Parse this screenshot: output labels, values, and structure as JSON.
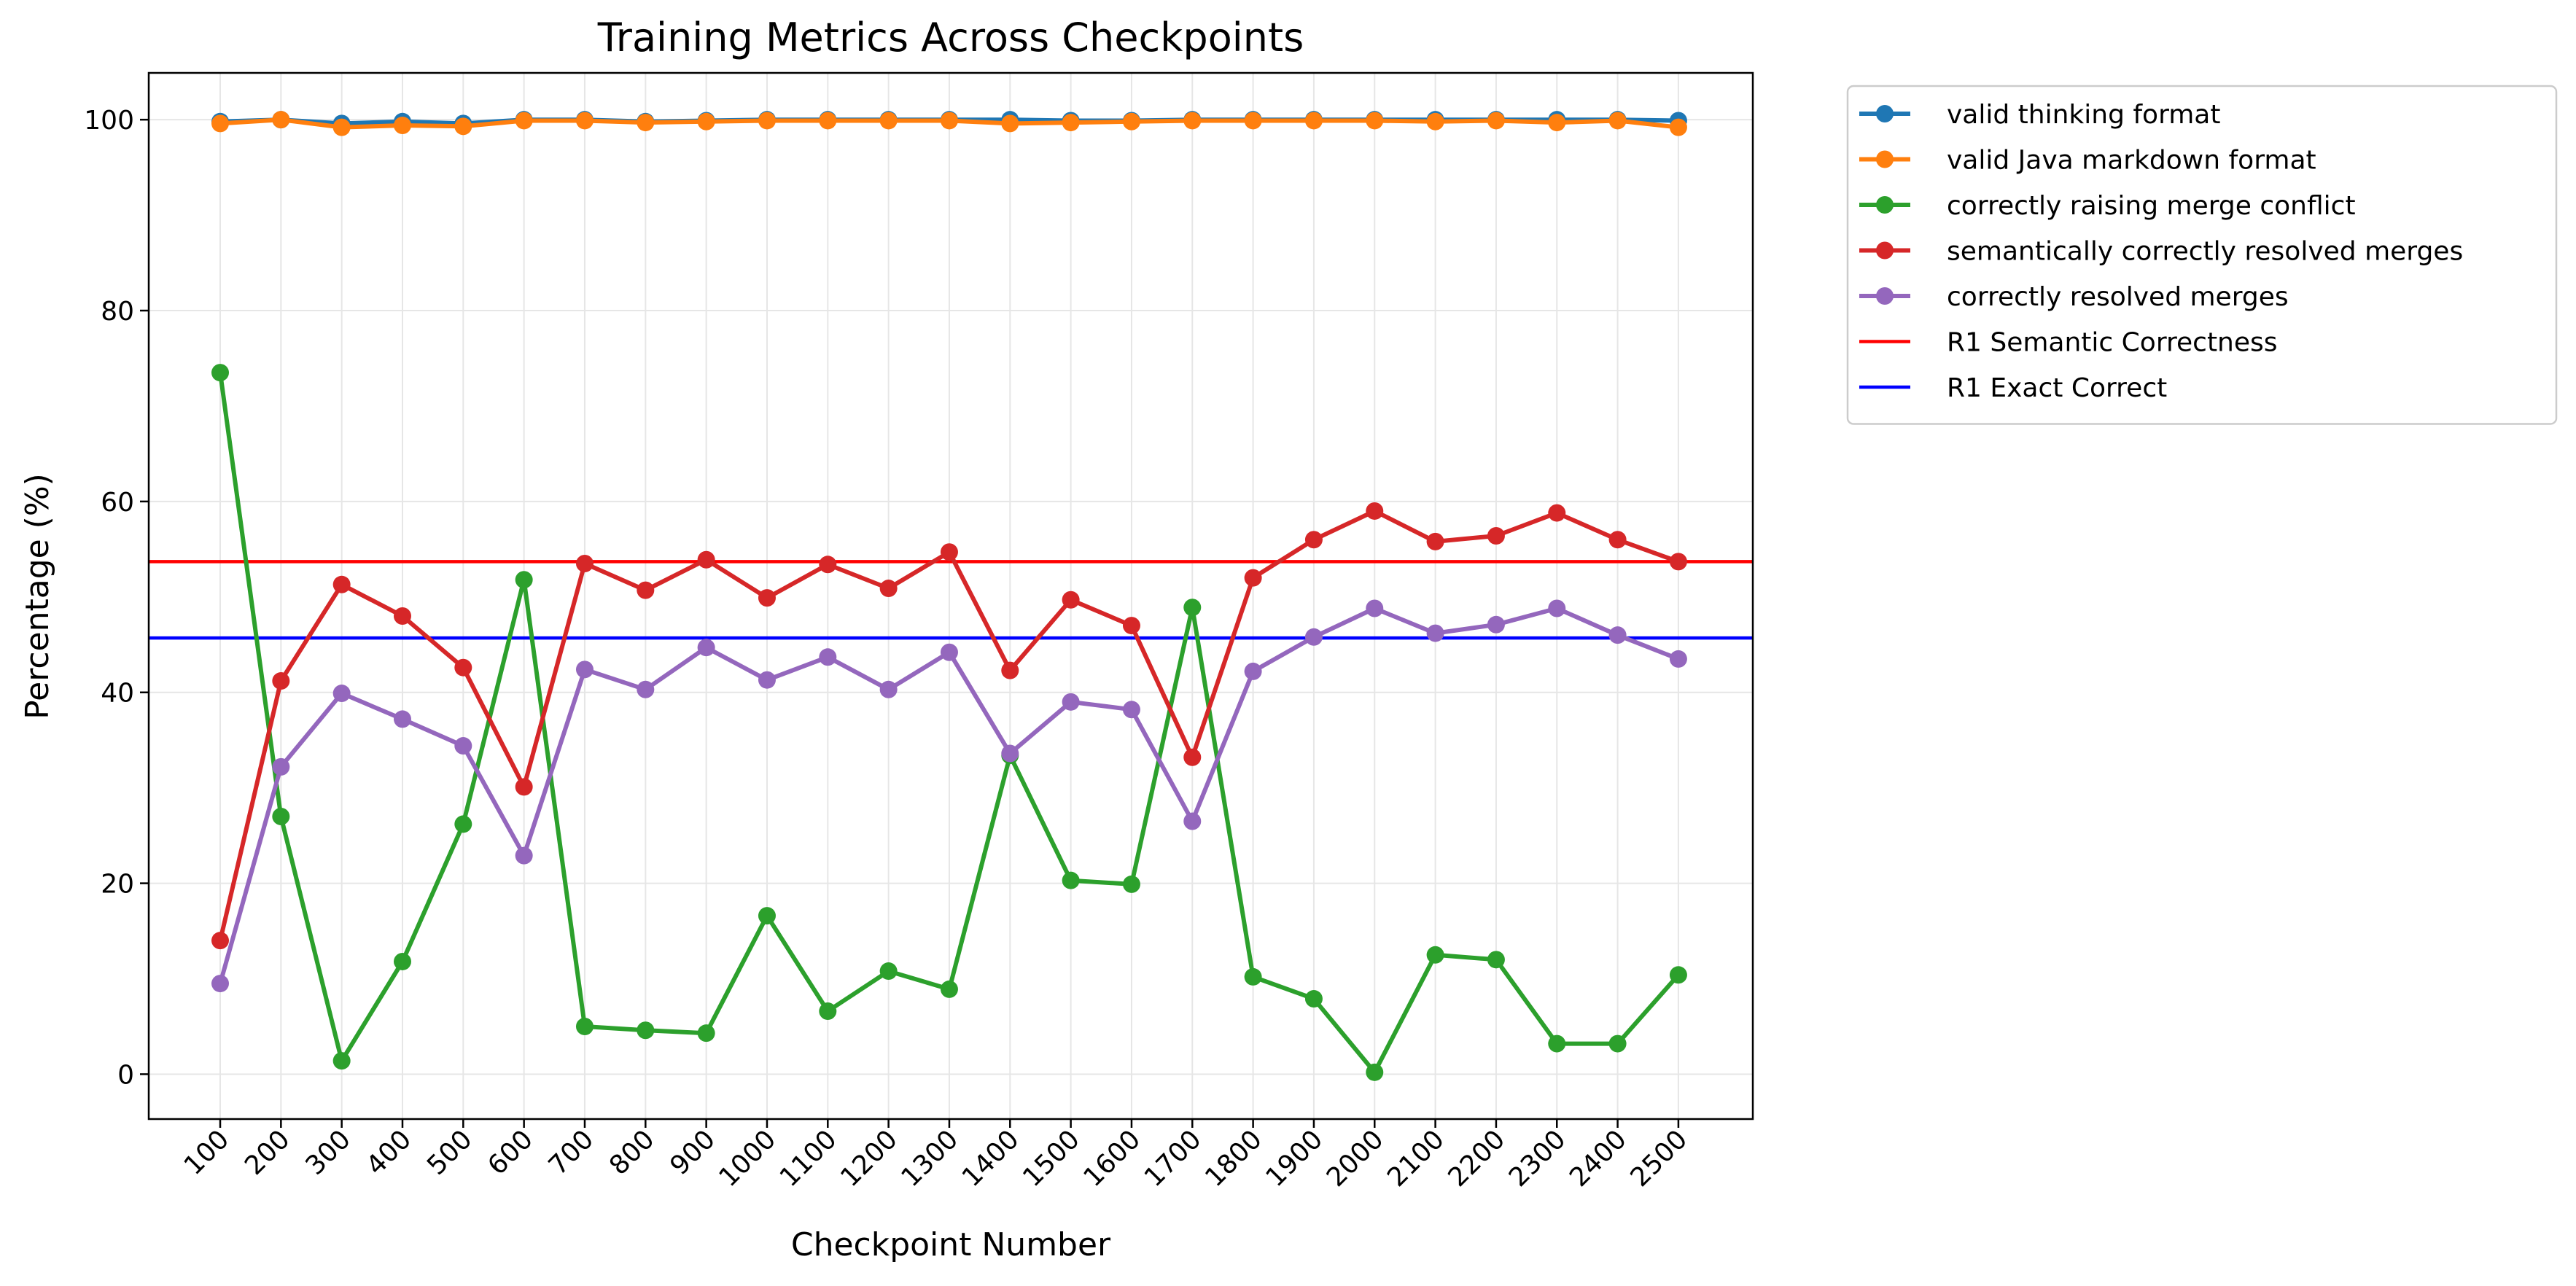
{
  "chart_data": {
    "type": "line",
    "title": "Training Metrics Across Checkpoints",
    "xlabel": "Checkpoint Number",
    "ylabel": "Percentage (%)",
    "categories": [
      "100",
      "200",
      "300",
      "400",
      "500",
      "600",
      "700",
      "800",
      "900",
      "1000",
      "1100",
      "1200",
      "1300",
      "1400",
      "1500",
      "1600",
      "1700",
      "1800",
      "1900",
      "2000",
      "2100",
      "2200",
      "2300",
      "2400",
      "2500"
    ],
    "ylim": [
      -4.7,
      104.9
    ],
    "yticks": [
      0,
      20,
      40,
      60,
      80,
      100
    ],
    "grid": true,
    "legend_position": "outside-top-right",
    "series": [
      {
        "name": "valid thinking format",
        "color": "#1f77b4",
        "values": [
          99.8,
          100.0,
          99.6,
          99.8,
          99.6,
          100.0,
          100.0,
          99.8,
          99.9,
          100.0,
          100.0,
          100.0,
          100.0,
          100.0,
          99.9,
          99.9,
          100.0,
          100.0,
          100.0,
          100.0,
          100.0,
          100.0,
          100.0,
          100.0,
          99.9
        ]
      },
      {
        "name": "valid Java markdown format",
        "color": "#ff7f0e",
        "values": [
          99.6,
          100.0,
          99.2,
          99.4,
          99.3,
          99.9,
          99.9,
          99.7,
          99.8,
          99.9,
          99.9,
          99.9,
          99.9,
          99.6,
          99.7,
          99.8,
          99.9,
          99.9,
          99.9,
          99.9,
          99.8,
          99.9,
          99.7,
          99.9,
          99.2
        ]
      },
      {
        "name": "correctly raising merge conflict",
        "color": "#2ca02c",
        "values": [
          73.5,
          27.0,
          1.4,
          11.8,
          26.2,
          51.8,
          5.0,
          4.6,
          4.3,
          16.6,
          6.6,
          10.8,
          8.9,
          33.4,
          20.3,
          19.9,
          48.9,
          10.2,
          7.9,
          0.2,
          12.5,
          12.0,
          3.2,
          3.2,
          10.4
        ]
      },
      {
        "name": "semantically correctly resolved merges",
        "color": "#d62728",
        "values": [
          14.0,
          41.2,
          51.3,
          48.0,
          42.6,
          30.1,
          53.5,
          50.7,
          53.9,
          49.9,
          53.4,
          50.9,
          54.7,
          42.3,
          49.7,
          47.0,
          33.2,
          52.0,
          56.0,
          59.0,
          55.8,
          56.4,
          58.8,
          56.0,
          53.7
        ]
      },
      {
        "name": "correctly resolved merges",
        "color": "#9467bd",
        "values": [
          9.5,
          32.2,
          39.9,
          37.2,
          34.4,
          22.9,
          42.4,
          40.3,
          44.7,
          41.3,
          43.7,
          40.3,
          44.2,
          33.6,
          39.0,
          38.2,
          26.5,
          42.2,
          45.8,
          48.8,
          46.2,
          47.1,
          48.8,
          46.0,
          43.5
        ]
      }
    ],
    "reference_lines": [
      {
        "name": "R1 Semantic Correctness",
        "value": 53.7,
        "color": "#ff0000"
      },
      {
        "name": "R1 Exact Correct",
        "value": 45.7,
        "color": "#0000ff"
      }
    ]
  }
}
